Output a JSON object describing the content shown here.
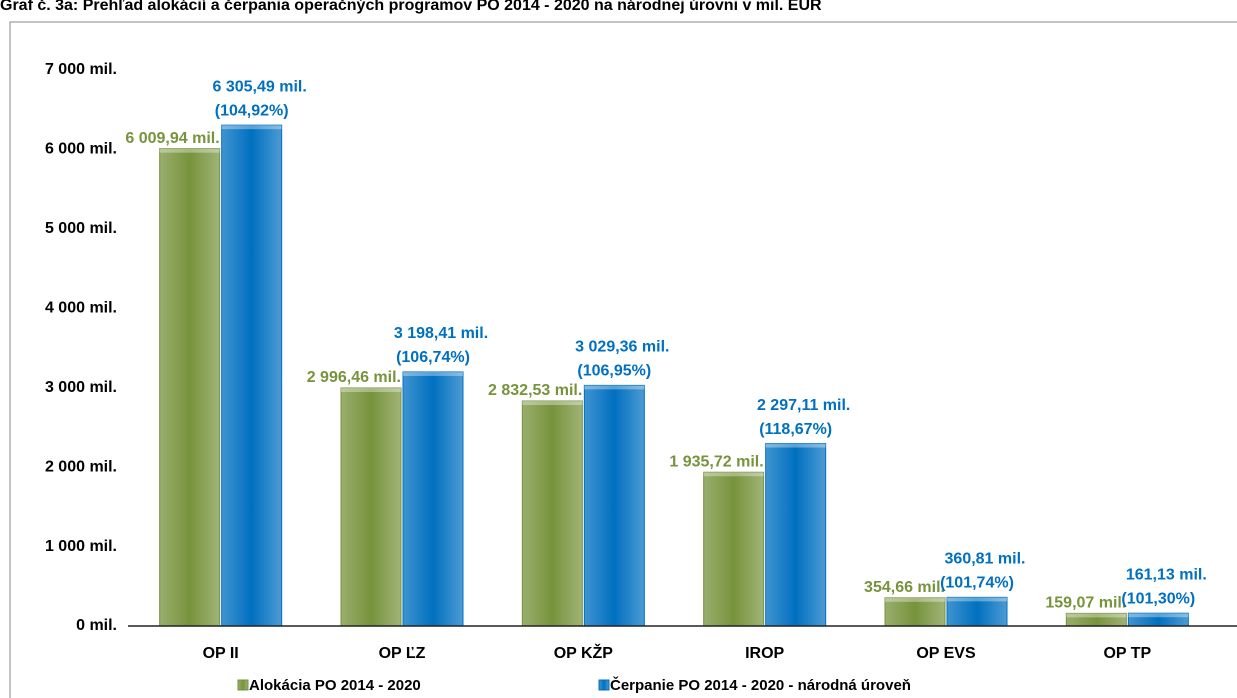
{
  "chart_data": {
    "type": "bar",
    "title": "Graf č. 3a: Prehľad alokácií a čerpania operačných programov PO 2014 - 2020 na národnej úrovni v mil. EUR",
    "categories": [
      "OP II",
      "OP ĽZ",
      "OP KŽP",
      "IROP",
      "OP EVS",
      "OP TP"
    ],
    "series": [
      {
        "name": "Alokácia PO 2014 - 2020",
        "color": "#77933c",
        "values": [
          6009.94,
          2996.46,
          2832.53,
          1935.72,
          354.66,
          159.07
        ],
        "value_labels": [
          "6 009,94 mil.",
          "2 996,46 mil.",
          "2 832,53 mil.",
          "1 935,72 mil.",
          "354,66 mil.",
          "159,07 mil."
        ]
      },
      {
        "name": "Čerpanie PO 2014 - 2020 - národná úroveň",
        "color": "#0070c0",
        "values": [
          6305.49,
          3198.41,
          3029.36,
          2297.11,
          360.81,
          161.13
        ],
        "value_labels": [
          "6 305,49 mil.",
          "3 198,41 mil.",
          "3 029,36 mil.",
          "2 297,11 mil.",
          "360,81 mil.",
          "161,13 mil."
        ],
        "percent_labels": [
          "(104,92%)",
          "(106,74%)",
          "(106,95%)",
          "(118,67%)",
          "(101,74%)",
          "(101,30%)"
        ]
      }
    ],
    "ylim": [
      0,
      7000
    ],
    "yticks": [
      {
        "value": 0,
        "label": "0 mil."
      },
      {
        "value": 1000,
        "label": "1 000 mil."
      },
      {
        "value": 2000,
        "label": "2 000 mil."
      },
      {
        "value": 3000,
        "label": "3 000 mil."
      },
      {
        "value": 4000,
        "label": "4 000 mil."
      },
      {
        "value": 5000,
        "label": "5 000 mil."
      },
      {
        "value": 6000,
        "label": "6 000 mil."
      },
      {
        "value": 7000,
        "label": "7 000 mil."
      }
    ],
    "grid": false
  }
}
